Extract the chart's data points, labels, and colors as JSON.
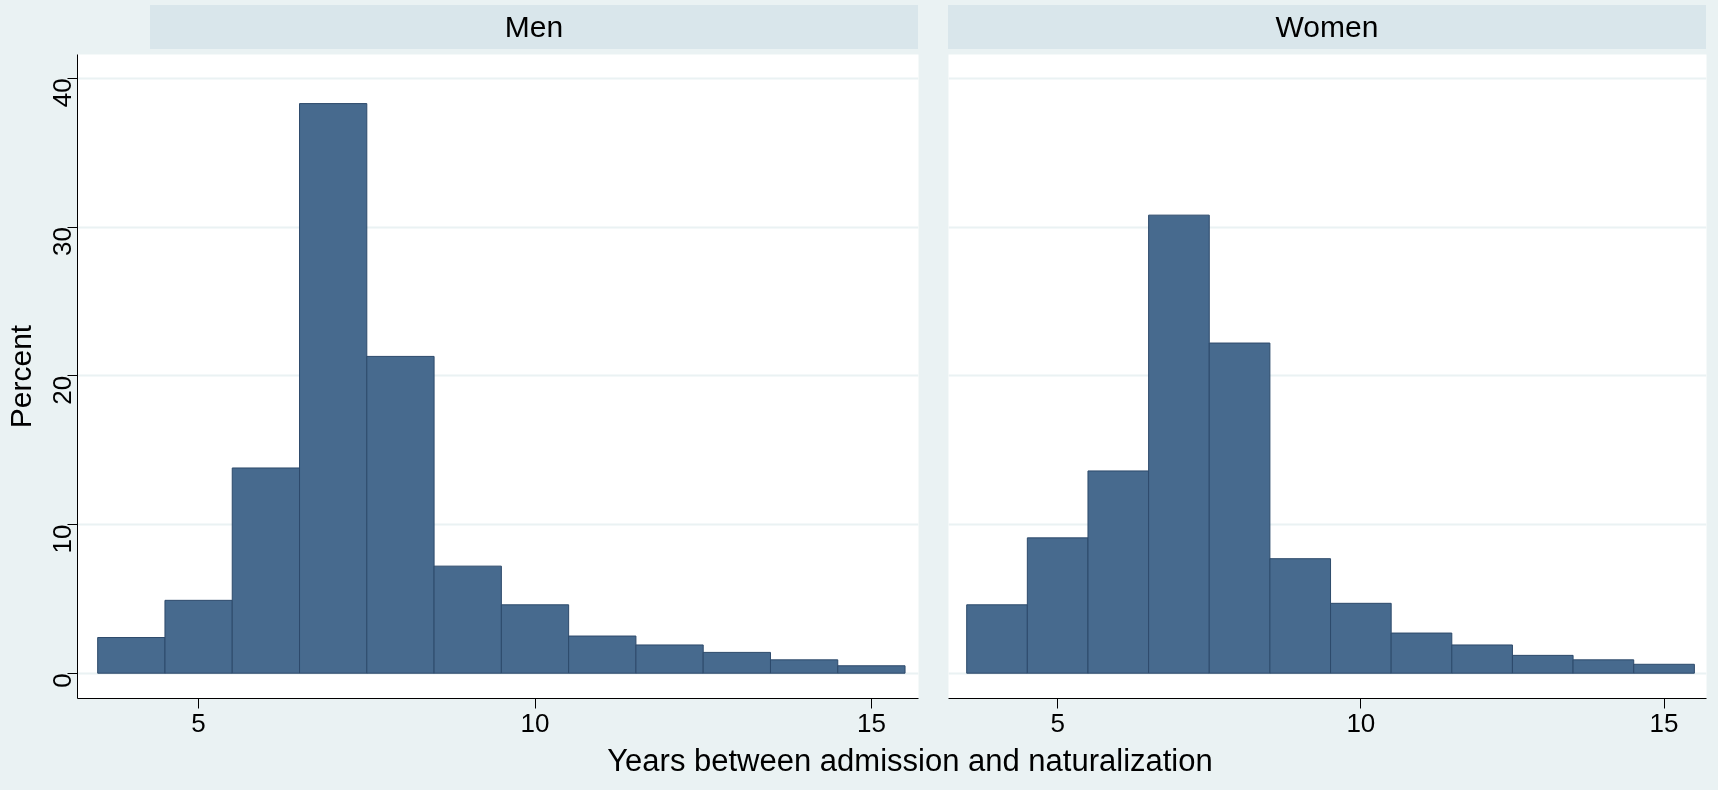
{
  "chart_data": [
    {
      "type": "histogram",
      "title": "Men",
      "ylabel": "Percent",
      "xlabel": "Years between admission and naturalization",
      "color": "#476a8e",
      "bins": [
        3.5,
        4.5,
        5.5,
        6.5,
        7.5,
        8.5,
        9.5,
        10.5,
        11.5,
        12.5,
        13.5,
        14.5,
        15.5
      ],
      "values": [
        2.4,
        4.9,
        13.8,
        38.3,
        21.3,
        7.2,
        4.6,
        2.5,
        1.9,
        1.4,
        0.9,
        0.5
      ],
      "xlim": [
        3.2,
        15.7
      ],
      "ylim": [
        -1.7,
        41.6
      ],
      "xticks": [
        5,
        10,
        15
      ],
      "yticks": [
        0,
        10,
        20,
        30,
        40
      ],
      "grid": "y"
    },
    {
      "type": "histogram",
      "title": "Women",
      "color": "#476a8e",
      "bins": [
        3.5,
        4.5,
        5.5,
        6.5,
        7.5,
        8.5,
        9.5,
        10.5,
        11.5,
        12.5,
        13.5,
        14.5,
        15.5
      ],
      "values": [
        4.6,
        9.1,
        13.6,
        30.8,
        22.2,
        7.7,
        4.7,
        2.7,
        1.9,
        1.2,
        0.9,
        0.6
      ],
      "xlim": [
        3.2,
        15.7
      ],
      "ylim": [
        -1.7,
        41.6
      ],
      "xticks": [
        5,
        10,
        15
      ],
      "yticks": [
        0,
        10,
        20,
        30,
        40
      ],
      "grid": "y",
      "tick_labels": "x"
    }
  ]
}
